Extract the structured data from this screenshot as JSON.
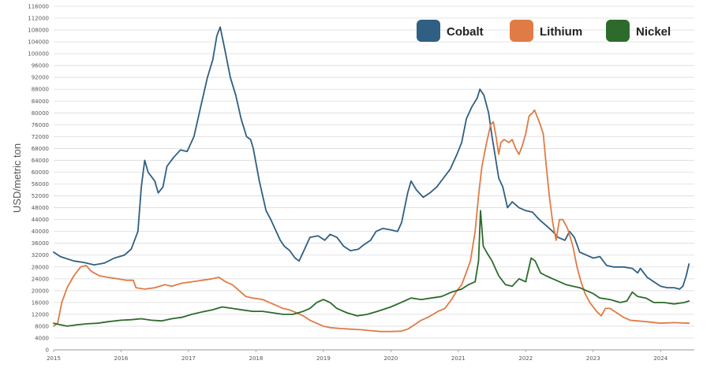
{
  "chart_data": {
    "type": "line",
    "title": "",
    "xlabel": "",
    "ylabel": "USD/metric ton",
    "ylim": [
      0,
      116000
    ],
    "ytick_step": 4000,
    "xlim": [
      2015,
      2024.5
    ],
    "xticks": [
      "2015",
      "2016",
      "2017",
      "2018",
      "2019",
      "2020",
      "2021",
      "2022",
      "2023",
      "2024"
    ],
    "grid": "horizontal",
    "legend_position": "top-right",
    "series": [
      {
        "name": "Cobalt",
        "color": "#2f5f82",
        "points": [
          [
            2015.0,
            33000
          ],
          [
            2015.1,
            31500
          ],
          [
            2015.3,
            30000
          ],
          [
            2015.45,
            29500
          ],
          [
            2015.6,
            28700
          ],
          [
            2015.75,
            29300
          ],
          [
            2015.9,
            31000
          ],
          [
            2016.05,
            32000
          ],
          [
            2016.15,
            34000
          ],
          [
            2016.25,
            40000
          ],
          [
            2016.3,
            55000
          ],
          [
            2016.35,
            64000
          ],
          [
            2016.4,
            60000
          ],
          [
            2016.5,
            57000
          ],
          [
            2016.55,
            53000
          ],
          [
            2016.62,
            55000
          ],
          [
            2016.68,
            62000
          ],
          [
            2016.78,
            65000
          ],
          [
            2016.88,
            67500
          ],
          [
            2016.98,
            67000
          ],
          [
            2017.08,
            72000
          ],
          [
            2017.18,
            82000
          ],
          [
            2017.28,
            92000
          ],
          [
            2017.36,
            98000
          ],
          [
            2017.42,
            106000
          ],
          [
            2017.47,
            109000
          ],
          [
            2017.55,
            100000
          ],
          [
            2017.62,
            92000
          ],
          [
            2017.7,
            86000
          ],
          [
            2017.78,
            78000
          ],
          [
            2017.86,
            72000
          ],
          [
            2017.92,
            71000
          ],
          [
            2017.96,
            68000
          ],
          [
            2018.05,
            57000
          ],
          [
            2018.15,
            47000
          ],
          [
            2018.22,
            44000
          ],
          [
            2018.3,
            40000
          ],
          [
            2018.36,
            37000
          ],
          [
            2018.42,
            35000
          ],
          [
            2018.5,
            33500
          ],
          [
            2018.58,
            31000
          ],
          [
            2018.64,
            30000
          ],
          [
            2018.72,
            34000
          ],
          [
            2018.8,
            38000
          ],
          [
            2018.92,
            38500
          ],
          [
            2019.02,
            37000
          ],
          [
            2019.1,
            39000
          ],
          [
            2019.2,
            38000
          ],
          [
            2019.3,
            35000
          ],
          [
            2019.4,
            33500
          ],
          [
            2019.52,
            34000
          ],
          [
            2019.6,
            35500
          ],
          [
            2019.7,
            37000
          ],
          [
            2019.78,
            40000
          ],
          [
            2019.88,
            41000
          ],
          [
            2020.0,
            40500
          ],
          [
            2020.1,
            40000
          ],
          [
            2020.16,
            43000
          ],
          [
            2020.25,
            53000
          ],
          [
            2020.3,
            57000
          ],
          [
            2020.38,
            54000
          ],
          [
            2020.48,
            51500
          ],
          [
            2020.58,
            53000
          ],
          [
            2020.68,
            55000
          ],
          [
            2020.78,
            58000
          ],
          [
            2020.88,
            61000
          ],
          [
            2020.98,
            66000
          ],
          [
            2021.05,
            70000
          ],
          [
            2021.12,
            78000
          ],
          [
            2021.2,
            82000
          ],
          [
            2021.28,
            85000
          ],
          [
            2021.32,
            88000
          ],
          [
            2021.38,
            86000
          ],
          [
            2021.45,
            80000
          ],
          [
            2021.5,
            72000
          ],
          [
            2021.55,
            65000
          ],
          [
            2021.6,
            58000
          ],
          [
            2021.66,
            55000
          ],
          [
            2021.73,
            48000
          ],
          [
            2021.8,
            50000
          ],
          [
            2021.9,
            48000
          ],
          [
            2022.0,
            47000
          ],
          [
            2022.1,
            46500
          ],
          [
            2022.2,
            44000
          ],
          [
            2022.3,
            42000
          ],
          [
            2022.4,
            40000
          ],
          [
            2022.48,
            38000
          ],
          [
            2022.58,
            37000
          ],
          [
            2022.65,
            40000
          ],
          [
            2022.72,
            38000
          ],
          [
            2022.8,
            33000
          ],
          [
            2022.9,
            32000
          ],
          [
            2023.0,
            31000
          ],
          [
            2023.1,
            31500
          ],
          [
            2023.2,
            28500
          ],
          [
            2023.3,
            28000
          ],
          [
            2023.45,
            28000
          ],
          [
            2023.58,
            27500
          ],
          [
            2023.66,
            26000
          ],
          [
            2023.7,
            27500
          ],
          [
            2023.8,
            24500
          ],
          [
            2023.9,
            23000
          ],
          [
            2024.0,
            21500
          ],
          [
            2024.1,
            21000
          ],
          [
            2024.2,
            21000
          ],
          [
            2024.28,
            20500
          ],
          [
            2024.33,
            21500
          ],
          [
            2024.38,
            25000
          ],
          [
            2024.42,
            29000
          ]
        ]
      },
      {
        "name": "Lithium",
        "color": "#e07b45",
        "points": [
          [
            2015.0,
            8000
          ],
          [
            2015.06,
            9000
          ],
          [
            2015.12,
            16000
          ],
          [
            2015.2,
            21000
          ],
          [
            2015.3,
            25000
          ],
          [
            2015.4,
            28000
          ],
          [
            2015.48,
            28500
          ],
          [
            2015.56,
            26500
          ],
          [
            2015.68,
            25000
          ],
          [
            2015.8,
            24500
          ],
          [
            2015.95,
            24000
          ],
          [
            2016.08,
            23500
          ],
          [
            2016.18,
            23500
          ],
          [
            2016.22,
            21000
          ],
          [
            2016.35,
            20500
          ],
          [
            2016.5,
            21000
          ],
          [
            2016.65,
            22000
          ],
          [
            2016.75,
            21500
          ],
          [
            2016.9,
            22500
          ],
          [
            2017.05,
            23000
          ],
          [
            2017.2,
            23500
          ],
          [
            2017.35,
            24000
          ],
          [
            2017.45,
            24500
          ],
          [
            2017.55,
            23000
          ],
          [
            2017.65,
            22000
          ],
          [
            2017.75,
            20000
          ],
          [
            2017.85,
            18000
          ],
          [
            2017.95,
            17500
          ],
          [
            2018.1,
            17000
          ],
          [
            2018.2,
            16000
          ],
          [
            2018.3,
            15000
          ],
          [
            2018.4,
            14000
          ],
          [
            2018.5,
            13500
          ],
          [
            2018.6,
            12500
          ],
          [
            2018.7,
            11500
          ],
          [
            2018.8,
            10000
          ],
          [
            2018.9,
            9000
          ],
          [
            2019.0,
            8000
          ],
          [
            2019.1,
            7500
          ],
          [
            2019.25,
            7200
          ],
          [
            2019.4,
            7000
          ],
          [
            2019.55,
            6800
          ],
          [
            2019.7,
            6500
          ],
          [
            2019.85,
            6200
          ],
          [
            2020.0,
            6200
          ],
          [
            2020.15,
            6300
          ],
          [
            2020.25,
            7000
          ],
          [
            2020.35,
            8500
          ],
          [
            2020.45,
            10000
          ],
          [
            2020.55,
            11000
          ],
          [
            2020.7,
            13000
          ],
          [
            2020.8,
            14000
          ],
          [
            2020.9,
            17000
          ],
          [
            2020.98,
            20000
          ],
          [
            2021.05,
            22000
          ],
          [
            2021.1,
            25000
          ],
          [
            2021.18,
            30000
          ],
          [
            2021.25,
            40000
          ],
          [
            2021.3,
            52000
          ],
          [
            2021.35,
            62000
          ],
          [
            2021.42,
            70000
          ],
          [
            2021.48,
            76000
          ],
          [
            2021.52,
            77000
          ],
          [
            2021.56,
            72000
          ],
          [
            2021.6,
            66000
          ],
          [
            2021.63,
            70000
          ],
          [
            2021.68,
            71000
          ],
          [
            2021.75,
            70000
          ],
          [
            2021.8,
            71000
          ],
          [
            2021.85,
            68000
          ],
          [
            2021.9,
            66000
          ],
          [
            2021.95,
            69000
          ],
          [
            2022.0,
            73000
          ],
          [
            2022.05,
            79000
          ],
          [
            2022.1,
            80000
          ],
          [
            2022.13,
            81000
          ],
          [
            2022.2,
            77000
          ],
          [
            2022.26,
            73000
          ],
          [
            2022.3,
            63000
          ],
          [
            2022.35,
            52000
          ],
          [
            2022.4,
            43000
          ],
          [
            2022.45,
            37000
          ],
          [
            2022.5,
            44000
          ],
          [
            2022.55,
            44000
          ],
          [
            2022.62,
            41000
          ],
          [
            2022.7,
            35000
          ],
          [
            2022.76,
            28000
          ],
          [
            2022.82,
            23000
          ],
          [
            2022.88,
            19000
          ],
          [
            2022.95,
            16000
          ],
          [
            2023.05,
            13000
          ],
          [
            2023.12,
            11500
          ],
          [
            2023.18,
            14000
          ],
          [
            2023.25,
            14000
          ],
          [
            2023.35,
            12500
          ],
          [
            2023.45,
            11000
          ],
          [
            2023.55,
            10000
          ],
          [
            2023.65,
            9800
          ],
          [
            2023.8,
            9500
          ],
          [
            2024.0,
            9000
          ],
          [
            2024.2,
            9200
          ],
          [
            2024.42,
            9000
          ]
        ]
      },
      {
        "name": "Nickel",
        "color": "#2c6b2c",
        "points": [
          [
            2015.0,
            9000
          ],
          [
            2015.1,
            8500
          ],
          [
            2015.2,
            8000
          ],
          [
            2015.35,
            8500
          ],
          [
            2015.5,
            8800
          ],
          [
            2015.65,
            9000
          ],
          [
            2015.8,
            9500
          ],
          [
            2016.0,
            10000
          ],
          [
            2016.15,
            10200
          ],
          [
            2016.3,
            10500
          ],
          [
            2016.45,
            10000
          ],
          [
            2016.6,
            9800
          ],
          [
            2016.75,
            10500
          ],
          [
            2016.9,
            11000
          ],
          [
            2017.05,
            12000
          ],
          [
            2017.2,
            12800
          ],
          [
            2017.35,
            13500
          ],
          [
            2017.5,
            14500
          ],
          [
            2017.65,
            14000
          ],
          [
            2017.8,
            13500
          ],
          [
            2017.95,
            13000
          ],
          [
            2018.1,
            13000
          ],
          [
            2018.25,
            12500
          ],
          [
            2018.4,
            12000
          ],
          [
            2018.55,
            12000
          ],
          [
            2018.7,
            13000
          ],
          [
            2018.8,
            14000
          ],
          [
            2018.9,
            16000
          ],
          [
            2019.0,
            17000
          ],
          [
            2019.1,
            16000
          ],
          [
            2019.2,
            14000
          ],
          [
            2019.35,
            12500
          ],
          [
            2019.5,
            11500
          ],
          [
            2019.65,
            12000
          ],
          [
            2019.8,
            13000
          ],
          [
            2020.0,
            14500
          ],
          [
            2020.15,
            16000
          ],
          [
            2020.3,
            17500
          ],
          [
            2020.45,
            17000
          ],
          [
            2020.6,
            17500
          ],
          [
            2020.75,
            18000
          ],
          [
            2020.9,
            19500
          ],
          [
            2021.05,
            20500
          ],
          [
            2021.15,
            22000
          ],
          [
            2021.25,
            23000
          ],
          [
            2021.3,
            30000
          ],
          [
            2021.33,
            47000
          ],
          [
            2021.37,
            35000
          ],
          [
            2021.42,
            33000
          ],
          [
            2021.5,
            30000
          ],
          [
            2021.6,
            25000
          ],
          [
            2021.7,
            22000
          ],
          [
            2021.8,
            21500
          ],
          [
            2021.9,
            24000
          ],
          [
            2022.0,
            23000
          ],
          [
            2022.08,
            31000
          ],
          [
            2022.14,
            30000
          ],
          [
            2022.22,
            26000
          ],
          [
            2022.3,
            25000
          ],
          [
            2022.4,
            24000
          ],
          [
            2022.5,
            23000
          ],
          [
            2022.6,
            22000
          ],
          [
            2022.7,
            21500
          ],
          [
            2022.8,
            21000
          ],
          [
            2022.9,
            20000
          ],
          [
            2023.0,
            19000
          ],
          [
            2023.1,
            17500
          ],
          [
            2023.25,
            17000
          ],
          [
            2023.4,
            16000
          ],
          [
            2023.5,
            16500
          ],
          [
            2023.58,
            19500
          ],
          [
            2023.66,
            18000
          ],
          [
            2023.78,
            17500
          ],
          [
            2023.9,
            16000
          ],
          [
            2024.05,
            16000
          ],
          [
            2024.2,
            15500
          ],
          [
            2024.35,
            16000
          ],
          [
            2024.42,
            16500
          ]
        ]
      }
    ]
  }
}
